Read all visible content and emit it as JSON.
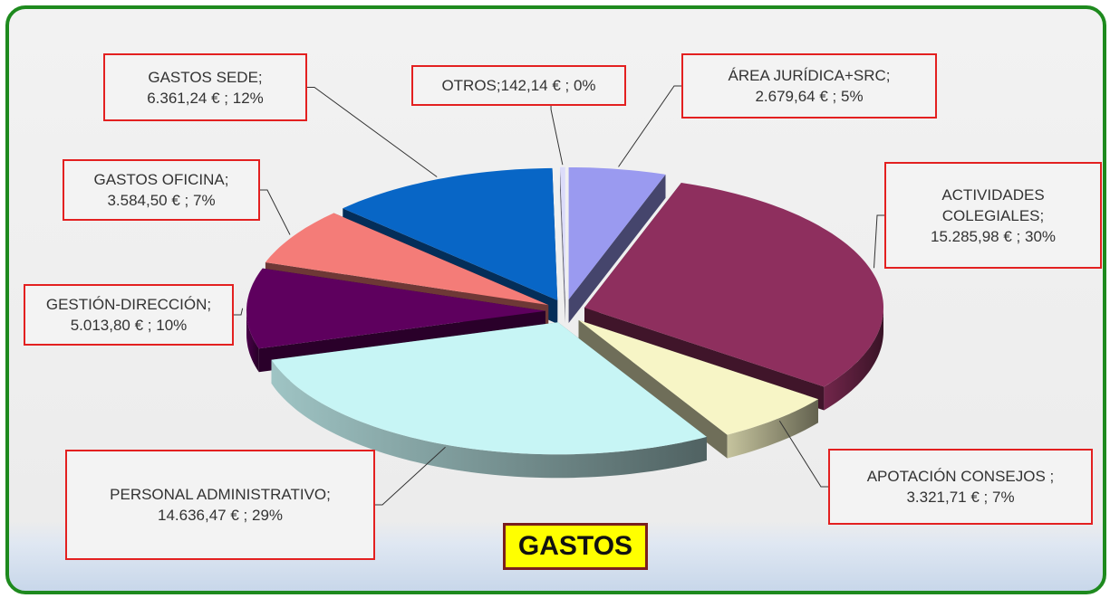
{
  "chart_data": {
    "type": "pie",
    "title": "GASTOS",
    "categories": [
      "ÁREA JURÍDICA+SRC;",
      "ACTIVIDADES COLEGIALES;",
      "APOTACIÓN CONSEJOS ;",
      "PERSONAL ADMINISTRATIVO;",
      "GESTIÓN-DIRECCIÓN;",
      "GASTOS OFICINA;",
      "GASTOS SEDE;",
      "OTROS;"
    ],
    "values": [
      2679.64,
      15285.98,
      3321.71,
      14636.47,
      5013.8,
      3584.5,
      6361.24,
      142.14
    ],
    "value_labels": [
      "2.679,64 € ;",
      "15.285,98 € ;",
      "3.321,71 € ;",
      "14.636,47 € ;",
      "5.013,80 € ;",
      "3.584,50 € ;",
      "6.361,24 € ;",
      "142,14 € ;"
    ],
    "percents": [
      5,
      30,
      7,
      29,
      10,
      7,
      12,
      0
    ],
    "percent_labels": [
      "5%",
      "30%",
      "7%",
      "29%",
      "10%",
      "7%",
      "12%",
      "0%"
    ],
    "colors": [
      "#9a9af0",
      "#8e2f5e",
      "#f7f5c6",
      "#c7f5f5",
      "#5e005e",
      "#f47c78",
      "#0866c6",
      "#dcdcfa"
    ]
  }
}
